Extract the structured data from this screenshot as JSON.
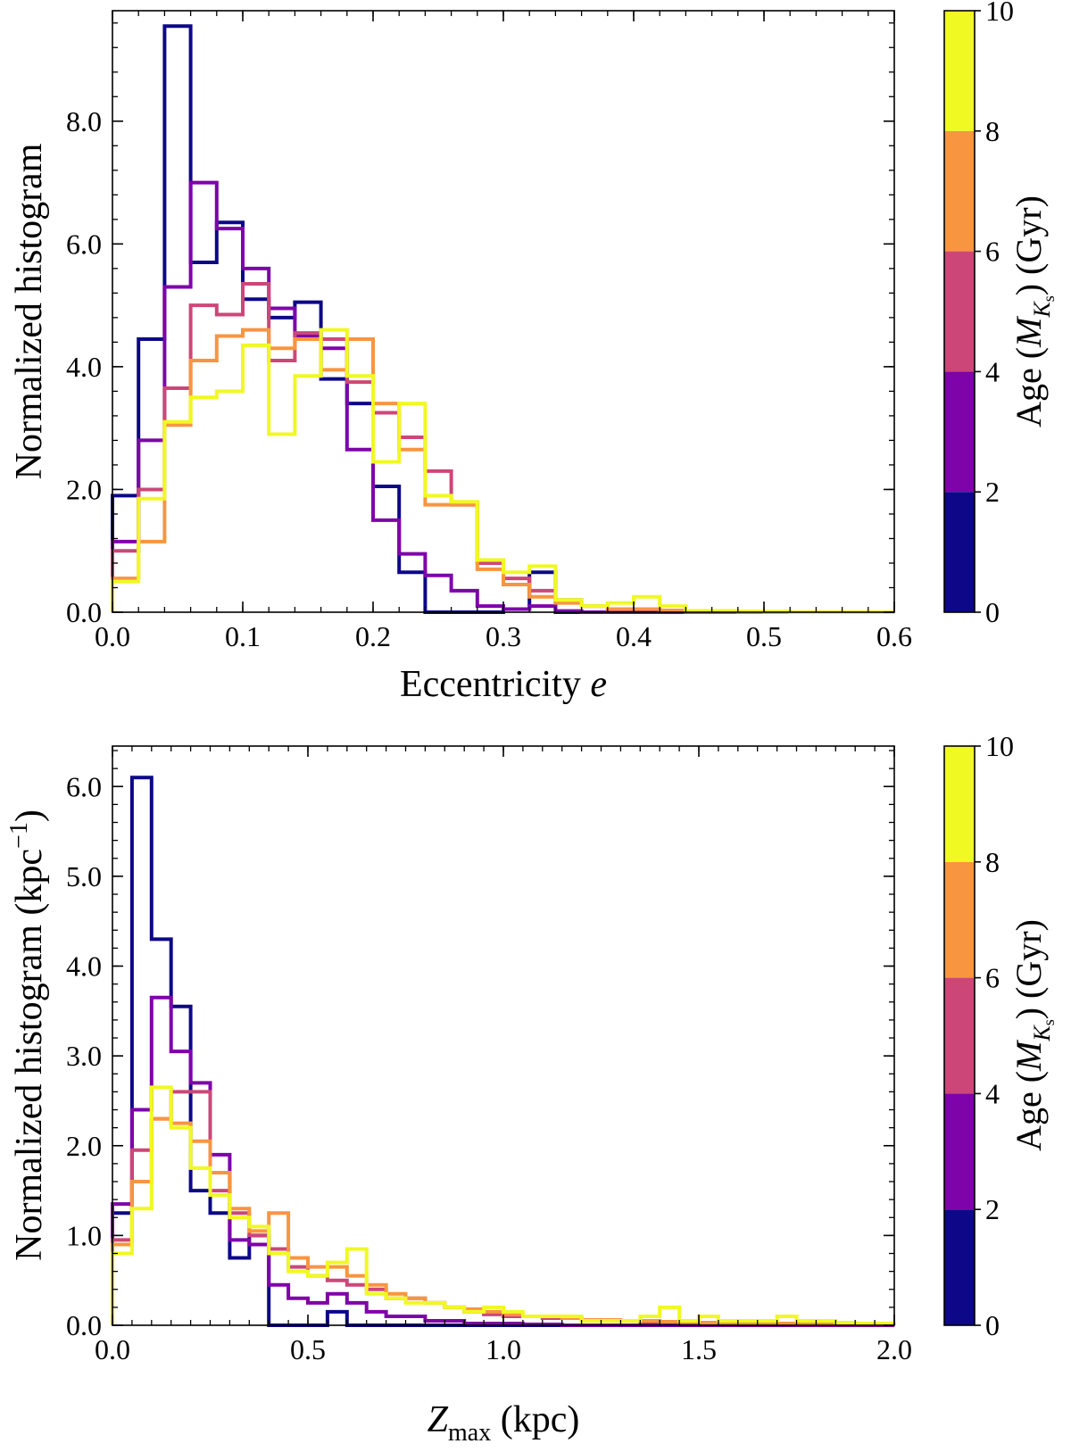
{
  "chart_data": [
    {
      "type": "histogram",
      "xlabel_main": "Eccentricity ",
      "xlabel_italic": "e",
      "ylabel": "Normalized histogram",
      "xlim": [
        0,
        0.6
      ],
      "ylim": [
        0,
        9.8
      ],
      "xticks": [
        0.0,
        0.1,
        0.2,
        0.3,
        0.4,
        0.5,
        0.6
      ],
      "xtick_labels": [
        "0.0",
        "0.1",
        "0.2",
        "0.3",
        "0.4",
        "0.5",
        "0.6"
      ],
      "yticks": [
        0,
        2,
        4,
        6,
        8
      ],
      "ytick_labels": [
        "0.0",
        "2.0",
        "4.0",
        "6.0",
        "8.0"
      ],
      "x_minor_step": 0.02,
      "y_minor_step": 0.4,
      "bin_edges_start": 0.0,
      "bin_width": 0.02,
      "series": [
        {
          "name": "0-2 Gyr",
          "color": "#0d0887",
          "values": [
            1.9,
            4.45,
            9.55,
            5.7,
            6.35,
            5.1,
            4.8,
            5.05,
            3.8,
            3.4,
            2.05,
            0.65,
            0,
            0,
            0,
            0.05,
            0.65,
            0,
            0,
            0,
            0,
            0,
            0,
            0,
            0,
            0,
            0,
            0,
            0,
            0
          ]
        },
        {
          "name": "2-4 Gyr",
          "color": "#7e03a8",
          "values": [
            1.15,
            2.8,
            5.3,
            7.0,
            6.25,
            5.6,
            4.95,
            4.5,
            4.3,
            2.65,
            1.5,
            0.95,
            0.6,
            0.35,
            0.1,
            0.05,
            0.1,
            0.02,
            0,
            0,
            0,
            0,
            0,
            0,
            0,
            0,
            0,
            0,
            0,
            0
          ]
        },
        {
          "name": "4-6 Gyr",
          "color": "#cc4778",
          "values": [
            1.0,
            2.0,
            3.65,
            5.0,
            4.85,
            5.35,
            4.1,
            4.55,
            4.45,
            3.75,
            3.25,
            2.85,
            2.3,
            1.75,
            0.8,
            0.55,
            0.35,
            0.2,
            0.1,
            0.05,
            0.05,
            0.02,
            0,
            0,
            0,
            0,
            0,
            0,
            0,
            0
          ]
        },
        {
          "name": "6-8 Gyr",
          "color": "#f89540",
          "values": [
            0.55,
            1.15,
            3.05,
            4.1,
            4.5,
            4.6,
            4.3,
            4.45,
            3.95,
            4.45,
            3.4,
            2.65,
            1.75,
            1.75,
            0.7,
            0.45,
            0.25,
            0.15,
            0.1,
            0.05,
            0.05,
            0.03,
            0.02,
            0.02,
            0.01,
            0,
            0,
            0,
            0,
            0
          ]
        },
        {
          "name": "8-10 Gyr",
          "color": "#f0f921",
          "values": [
            0.5,
            1.85,
            3.1,
            3.5,
            3.6,
            4.35,
            2.9,
            3.85,
            4.6,
            3.85,
            2.45,
            3.4,
            1.9,
            1.8,
            0.85,
            0.65,
            0.75,
            0.2,
            0.1,
            0.15,
            0.25,
            0.1,
            0.02,
            0.02,
            0.01,
            0.01,
            0,
            0,
            0,
            0
          ]
        }
      ],
      "colorbar": {
        "label_prefix": "Age  (",
        "label_M": "M",
        "label_K": "K",
        "label_s": "s",
        "label_suffix": ")  (Gyr)",
        "ticks": [
          "0",
          "2",
          "4",
          "6",
          "8",
          "10"
        ],
        "colors": [
          "#0d0887",
          "#7e03a8",
          "#cc4778",
          "#f89540",
          "#f0f921"
        ]
      }
    },
    {
      "type": "histogram",
      "xlabel_Z": "Z",
      "xlabel_sub": "max",
      "xlabel_suffix": "  (kpc)",
      "ylabel_main": "Normalized histogram  (kpc",
      "ylabel_sup": "−1",
      "ylabel_close": ")",
      "xlim": [
        0,
        2.0
      ],
      "ylim": [
        0,
        6.45
      ],
      "xticks": [
        0.0,
        0.5,
        1.0,
        1.5,
        2.0
      ],
      "xtick_labels": [
        "0.0",
        "0.5",
        "1.0",
        "1.5",
        "2.0"
      ],
      "yticks": [
        0,
        1,
        2,
        3,
        4,
        5,
        6
      ],
      "ytick_labels": [
        "0.0",
        "1.0",
        "2.0",
        "3.0",
        "4.0",
        "5.0",
        "6.0"
      ],
      "x_minor_step": 0.05,
      "y_minor_step": 0.2,
      "bin_edges_start": 0.0,
      "bin_width": 0.05,
      "series": [
        {
          "name": "0-2 Gyr",
          "color": "#0d0887",
          "values": [
            1.25,
            6.1,
            4.3,
            3.55,
            1.5,
            1.25,
            0.75,
            1.0,
            0,
            0,
            0,
            0.15,
            0,
            0,
            0,
            0,
            0,
            0,
            0,
            0,
            0,
            0,
            0,
            0,
            0,
            0,
            0,
            0,
            0,
            0,
            0,
            0,
            0,
            0,
            0,
            0,
            0,
            0,
            0,
            0
          ]
        },
        {
          "name": "2-4 Gyr",
          "color": "#7e03a8",
          "values": [
            1.35,
            2.4,
            3.65,
            3.05,
            2.7,
            1.9,
            0.95,
            0.9,
            0.45,
            0.3,
            0.25,
            0.35,
            0.25,
            0.15,
            0.1,
            0.1,
            0.05,
            0.05,
            0.02,
            0.02,
            0.02,
            0.01,
            0.01,
            0,
            0,
            0,
            0,
            0,
            0,
            0,
            0,
            0,
            0,
            0,
            0,
            0,
            0,
            0,
            0,
            0
          ]
        },
        {
          "name": "4-6 Gyr",
          "color": "#cc4778",
          "values": [
            0.95,
            1.95,
            2.3,
            2.6,
            2.6,
            1.5,
            1.25,
            1.0,
            0.85,
            0.65,
            0.55,
            0.5,
            0.45,
            0.4,
            0.3,
            0.3,
            0.25,
            0.2,
            0.15,
            0.12,
            0.1,
            0.1,
            0.08,
            0.08,
            0.06,
            0.05,
            0.05,
            0.04,
            0.04,
            0.03,
            0.03,
            0.03,
            0.02,
            0.02,
            0.02,
            0.01,
            0.01,
            0.01,
            0.01,
            0.01
          ]
        },
        {
          "name": "6-8 Gyr",
          "color": "#f89540",
          "values": [
            0.9,
            1.6,
            2.3,
            2.25,
            2.05,
            1.7,
            1.3,
            1.05,
            1.25,
            0.75,
            0.65,
            0.65,
            0.55,
            0.45,
            0.35,
            0.3,
            0.25,
            0.2,
            0.18,
            0.15,
            0.12,
            0.1,
            0.1,
            0.08,
            0.06,
            0.06,
            0.05,
            0.05,
            0.04,
            0.04,
            0.03,
            0.03,
            0.02,
            0.02,
            0.02,
            0.01,
            0.01,
            0.01,
            0.01,
            0.01
          ]
        },
        {
          "name": "8-10 Gyr",
          "color": "#f0f921",
          "values": [
            0.8,
            1.3,
            2.65,
            2.2,
            1.75,
            1.45,
            1.2,
            1.1,
            0.8,
            0.6,
            0.55,
            0.7,
            0.85,
            0.35,
            0.3,
            0.25,
            0.25,
            0.2,
            0.15,
            0.2,
            0.15,
            0.1,
            0.1,
            0.1,
            0.05,
            0.05,
            0.05,
            0.1,
            0.2,
            0.05,
            0.1,
            0.05,
            0.05,
            0.05,
            0.1,
            0.05,
            0.05,
            0.03,
            0.02,
            0.02
          ]
        }
      ],
      "colorbar": {
        "label_prefix": "Age  (",
        "label_M": "M",
        "label_K": "K",
        "label_s": "s",
        "label_suffix": ")  (Gyr)",
        "ticks": [
          "0",
          "2",
          "4",
          "6",
          "8",
          "10"
        ],
        "colors": [
          "#0d0887",
          "#7e03a8",
          "#cc4778",
          "#f89540",
          "#f0f921"
        ]
      }
    }
  ]
}
